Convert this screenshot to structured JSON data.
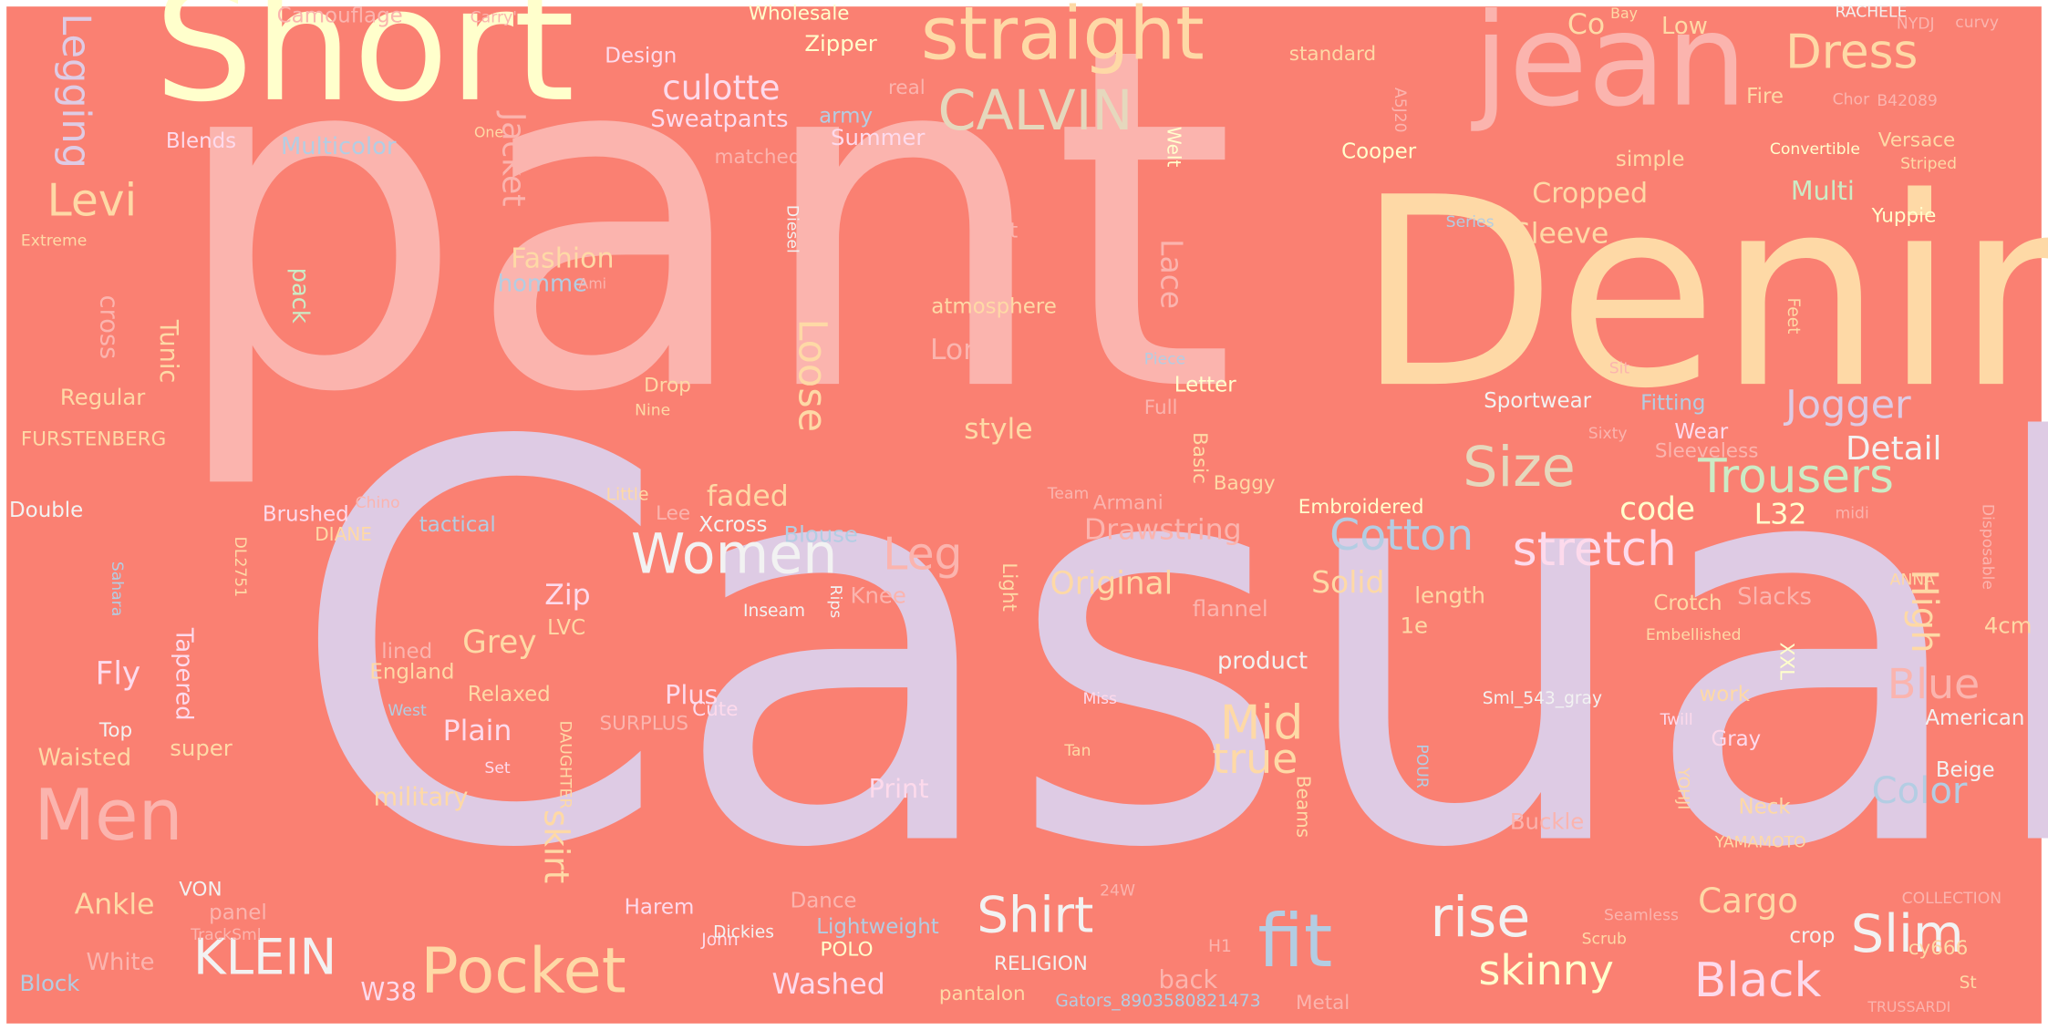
{
  "background_color": "#FA8072",
  "palette": {
    "pink": "#FBB4AE",
    "lavender": "#DECBE4",
    "peach": "#FED9A6",
    "yellow": "#FFFFCC",
    "blue": "#B3CDE3",
    "green": "#CCEBC5",
    "rose": "#FDDAEC",
    "tan": "#E5D8BD",
    "light": "#F2F2F2"
  },
  "words": [
    "pant",
    "Casual",
    "Denim",
    "Short",
    "jean",
    "straight",
    "Dress",
    "CALVIN",
    "Legging",
    "Levi",
    "culotte",
    "Sweatpants",
    "Multicolor",
    "Blends",
    "Camouflage",
    "Carry'",
    "Wholesale",
    "Design",
    "Zipper",
    "army",
    "real",
    "Summer",
    "matched",
    "Jacket",
    "Fashion",
    "homme",
    "Ami",
    "pack",
    "cross",
    "Tunic",
    "Regular",
    "FURSTENBERG",
    "Double",
    "Extreme",
    "Diesel",
    "first",
    "atmosphere",
    "Long",
    "Loose",
    "Drop",
    "Nine",
    "style",
    "Lace",
    "Welt",
    "standard",
    "A5J20",
    "Cooper",
    "Co",
    "Low",
    "Fire",
    "Chor",
    "B42089",
    "Bay",
    "RACHELE",
    "NYDJ",
    "curvy",
    "One",
    "Convertible",
    "Versace",
    "Striped",
    "simple",
    "Cropped",
    "Multi",
    "Yuppie",
    "Sleeve",
    "Series",
    "Feet",
    "Sit",
    "Jogger",
    "Fitting",
    "Sportwear",
    "Piece",
    "Full",
    "Letter",
    "Size",
    "Trousers",
    "Detail",
    "Wear",
    "Sleeveless",
    "Sixty",
    "Basic",
    "Baggy",
    "Drawstring",
    "Armani",
    "Team",
    "Original",
    "Cotton",
    "stretch",
    "code",
    "L32",
    "Embroidered",
    "midi",
    "Disposable",
    "High",
    "Blue",
    "4cm",
    "ANNA",
    "Embellished",
    "Slacks",
    "Crotch",
    "XXL",
    "length",
    "1e",
    "Solid",
    "flannel",
    "product",
    "Mid",
    "true",
    "Women",
    "Leg",
    "Knee",
    "Xcross",
    "Blouse",
    "Grey",
    "Zip",
    "LVC",
    "Little",
    "faded",
    "Lee",
    "Brushed",
    "DIANE",
    "tactical",
    "Chino",
    "Sahara",
    "DL2751",
    "Rips",
    "Light",
    "Inseam",
    "England",
    "Relaxed",
    "lined",
    "Fly",
    "Tapered",
    "Top",
    "West",
    "Waisted",
    "super",
    "Plain",
    "Plus",
    "Cute",
    "SURPLUS",
    "Set",
    "DAUGHTER",
    "Miss",
    "Tan",
    "skirt",
    "military",
    "Print",
    "Sml_543_gray",
    "Twill",
    "POUR",
    "work",
    "Gray",
    "American",
    "Color",
    "Beige",
    "Neck",
    "YOHJI",
    "Beams",
    "Buckle",
    "YAMAMOTO",
    "Cargo",
    "Slim",
    "rise",
    "Shirt",
    "fit",
    "KLEIN",
    "Pocket",
    "Ankle",
    "VON",
    "panel",
    "TrackSml",
    "White",
    "Block",
    "Men",
    "Harem",
    "John",
    "Dance",
    "Dickies",
    "Lightweight",
    "POLO",
    "H1",
    "24W",
    "RELIGION",
    "back",
    "Washed",
    "pantalon",
    "Gators_8903580821473",
    "Metal",
    "W38",
    "skinny",
    "Black",
    "crop",
    "Scrub",
    "Seamless",
    "COLLECTION",
    "cy666",
    "St",
    "TRUSSARDI"
  ]
}
